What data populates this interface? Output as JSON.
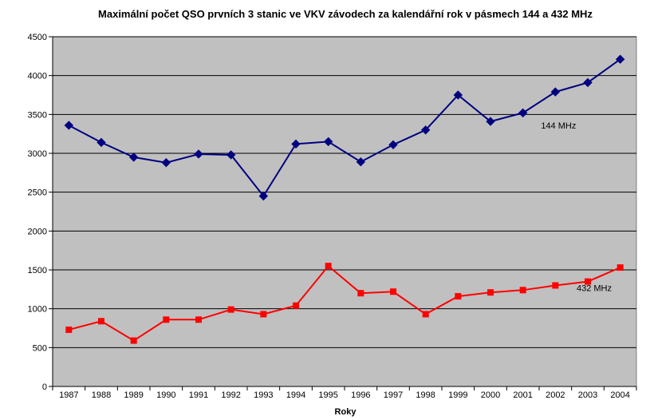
{
  "chart_data": {
    "type": "line",
    "title": "Maximální počet QSO prvních 3 stanic ve VKV závodech za kalendářní rok v pásmech 144 a 432 MHz",
    "xlabel": "Roky",
    "ylabel": "",
    "ylim": [
      0,
      4500
    ],
    "yticks": [
      0,
      500,
      1000,
      1500,
      2000,
      2500,
      3000,
      3500,
      4000,
      4500
    ],
    "grid": true,
    "legend": "none",
    "categories": [
      "1987",
      "1988",
      "1989",
      "1990",
      "1991",
      "1992",
      "1993",
      "1994",
      "1995",
      "1996",
      "1997",
      "1998",
      "1999",
      "2000",
      "2001",
      "2002",
      "2003",
      "2004"
    ],
    "series": [
      {
        "name": "144 MHz",
        "color": "#000080",
        "marker": "diamond",
        "values": [
          3360,
          3140,
          2950,
          2880,
          2990,
          2980,
          2450,
          3120,
          3150,
          2890,
          3110,
          3300,
          3750,
          3410,
          3520,
          3790,
          3910,
          4210
        ]
      },
      {
        "name": "432 MHz",
        "color": "#ff0000",
        "marker": "square",
        "values": [
          730,
          840,
          590,
          860,
          860,
          990,
          930,
          1040,
          1550,
          1200,
          1220,
          930,
          1160,
          1210,
          1240,
          1300,
          1350,
          1530
        ]
      }
    ]
  },
  "colors": {
    "plot_background": "#c0c0c0",
    "gridline": "#000000"
  }
}
